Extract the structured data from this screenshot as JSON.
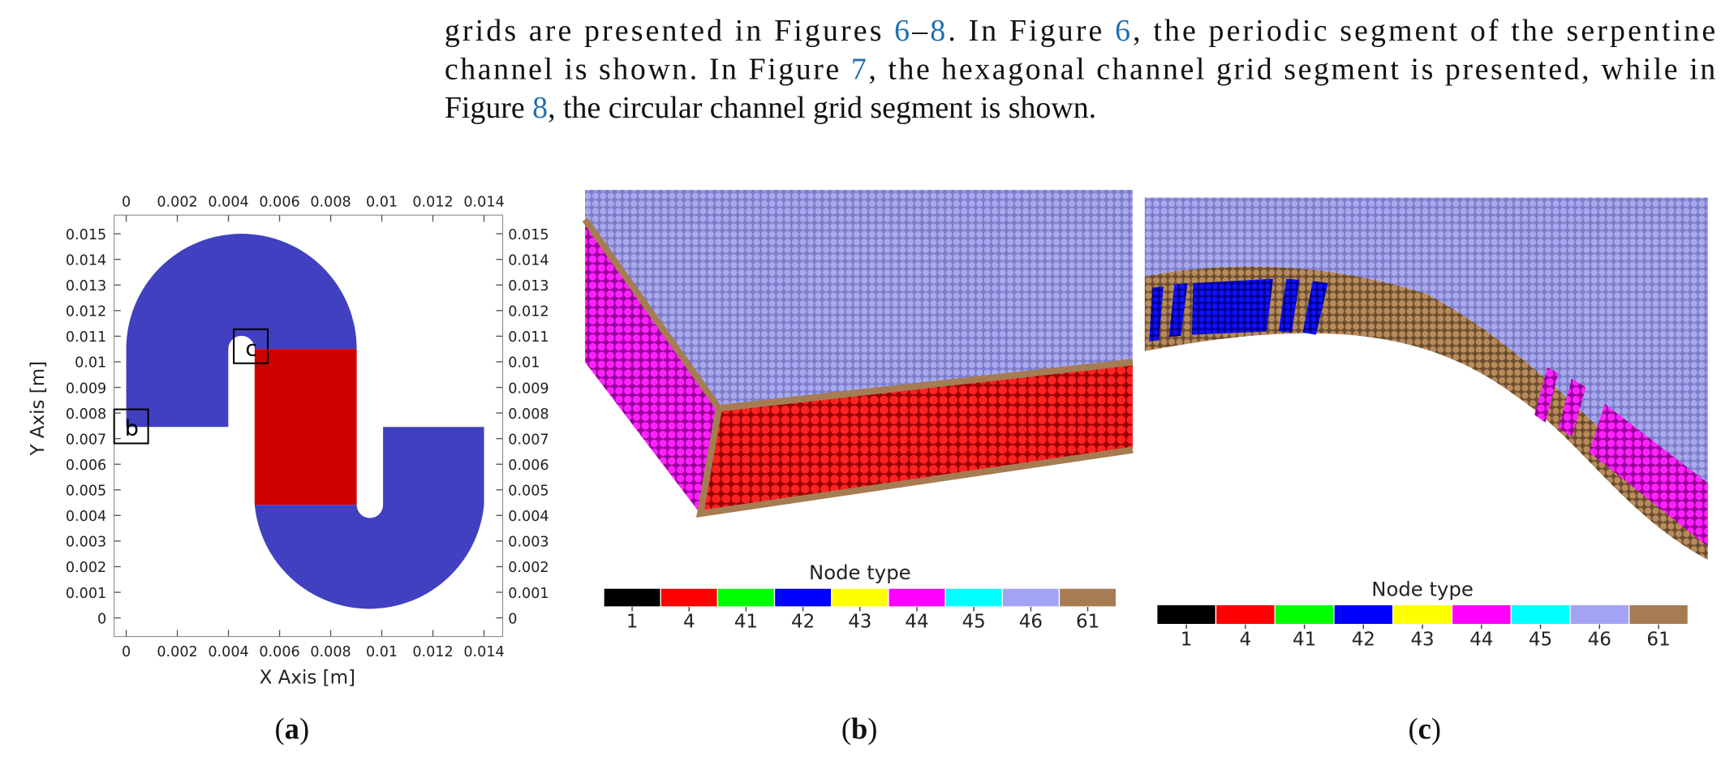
{
  "paragraph": {
    "lines": [
      [
        {
          "text": "grids are presented in Figures "
        },
        {
          "text": "6",
          "ref": true
        },
        {
          "text": "–"
        },
        {
          "text": "8",
          "ref": true
        },
        {
          "text": ".  In Figure "
        },
        {
          "text": "6",
          "ref": true
        },
        {
          "text": ", the periodic segment of the serpentine"
        }
      ],
      [
        {
          "text": "channel is shown.  In Figure "
        },
        {
          "text": "7",
          "ref": true
        },
        {
          "text": ", the hexagonal channel grid segment is presented, while in"
        }
      ],
      [
        {
          "text": "Figure "
        },
        {
          "text": "8",
          "ref": true
        },
        {
          "text": ", the circular channel grid segment is shown."
        }
      ]
    ]
  },
  "figure": {
    "panel_a": {
      "x_label": "X Axis [m]",
      "y_label": "Y Axis [m]",
      "xlim": [
        0,
        0.014
      ],
      "ylim": [
        0,
        0.015
      ],
      "xticks": [
        0,
        0.002,
        0.004,
        0.006,
        0.008,
        0.01,
        0.012,
        0.014
      ],
      "yticks": [
        0,
        0.001,
        0.002,
        0.003,
        0.004,
        0.005,
        0.006,
        0.007,
        0.008,
        0.009,
        0.01,
        0.011,
        0.012,
        0.013,
        0.014,
        0.015
      ],
      "annotations": [
        "b",
        "c"
      ],
      "caption": [
        "(",
        "a",
        ")"
      ]
    },
    "panel_b": {
      "legend": {
        "title": "Node type",
        "items": [
          {
            "label": "1",
            "color": "#000000"
          },
          {
            "label": "4",
            "color": "#ff0000"
          },
          {
            "label": "41",
            "color": "#00ff00"
          },
          {
            "label": "42",
            "color": "#0000ff"
          },
          {
            "label": "43",
            "color": "#ffff00"
          },
          {
            "label": "44",
            "color": "#ff00ff"
          },
          {
            "label": "45",
            "color": "#00ffff"
          },
          {
            "label": "46",
            "color": "#a3a3f5"
          },
          {
            "label": "61",
            "color": "#a67c52"
          }
        ]
      },
      "caption": [
        "(",
        "b",
        ")"
      ]
    },
    "panel_c": {
      "legend": {
        "title": "Node type",
        "items": [
          {
            "label": "1",
            "color": "#000000"
          },
          {
            "label": "4",
            "color": "#ff0000"
          },
          {
            "label": "41",
            "color": "#00ff00"
          },
          {
            "label": "42",
            "color": "#0000ff"
          },
          {
            "label": "43",
            "color": "#ffff00"
          },
          {
            "label": "44",
            "color": "#ff00ff"
          },
          {
            "label": "45",
            "color": "#00ffff"
          },
          {
            "label": "46",
            "color": "#a3a3f5"
          },
          {
            "label": "61",
            "color": "#a67c52"
          }
        ]
      },
      "caption": [
        "(",
        "c",
        ")"
      ]
    }
  }
}
